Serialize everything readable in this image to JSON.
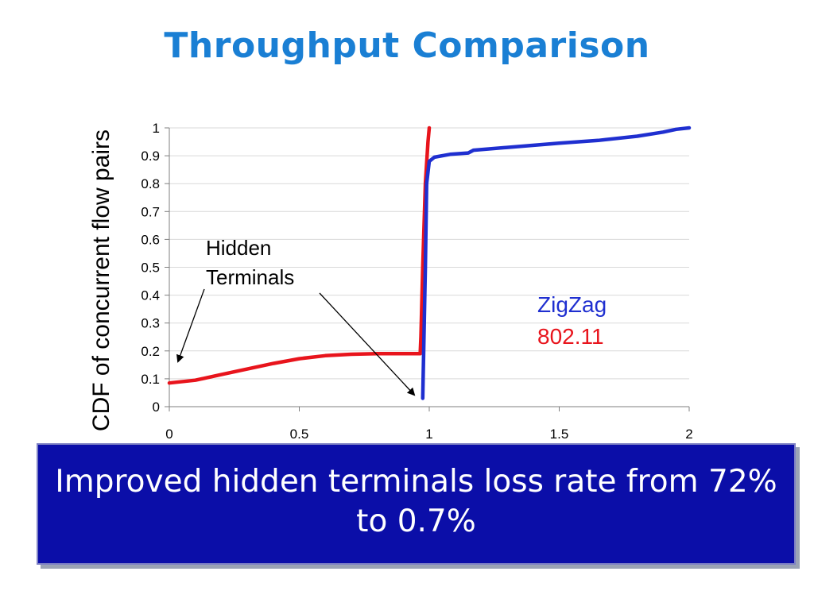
{
  "slide": {
    "title": "Throughput Comparison",
    "banner_text": "Improved hidden terminals loss rate from 72% to 0.7%",
    "annotation": {
      "line1": "Hidden",
      "line2": "Terminals"
    }
  },
  "colors": {
    "title": "#1a7fd4",
    "zigzag": "#1f2fd0",
    "ieee80211": "#e8141c",
    "banner": "#0b0ea8"
  },
  "chart_data": {
    "type": "line",
    "title": "",
    "xlabel": "",
    "ylabel": "CDF of concurrent flow pairs",
    "xlim": [
      0,
      2
    ],
    "ylim": [
      0,
      1
    ],
    "x_ticks": [
      "0",
      "0.5",
      "1",
      "1.5",
      "2"
    ],
    "y_ticks": [
      "0",
      "0.1",
      "0.2",
      "0.3",
      "0.4",
      "0.5",
      "0.6",
      "0.7",
      "0.8",
      "0.9",
      "1"
    ],
    "grid": "horizontal",
    "legend": "inside-right",
    "series": [
      {
        "name": "ZigZag",
        "color": "#1f2fd0",
        "points": [
          [
            0.975,
            0.03
          ],
          [
            0.985,
            0.5
          ],
          [
            0.99,
            0.8
          ],
          [
            1.0,
            0.88
          ],
          [
            1.02,
            0.895
          ],
          [
            1.08,
            0.905
          ],
          [
            1.15,
            0.91
          ],
          [
            1.17,
            0.92
          ],
          [
            1.3,
            0.93
          ],
          [
            1.5,
            0.945
          ],
          [
            1.65,
            0.955
          ],
          [
            1.8,
            0.97
          ],
          [
            1.9,
            0.985
          ],
          [
            1.95,
            0.995
          ],
          [
            2.0,
            1.0
          ]
        ]
      },
      {
        "name": "802.11",
        "color": "#e8141c",
        "points": [
          [
            0.0,
            0.085
          ],
          [
            0.1,
            0.095
          ],
          [
            0.2,
            0.115
          ],
          [
            0.3,
            0.135
          ],
          [
            0.4,
            0.155
          ],
          [
            0.5,
            0.172
          ],
          [
            0.6,
            0.183
          ],
          [
            0.7,
            0.188
          ],
          [
            0.8,
            0.19
          ],
          [
            0.965,
            0.19
          ],
          [
            0.968,
            0.25
          ],
          [
            0.975,
            0.5
          ],
          [
            0.985,
            0.8
          ],
          [
            0.995,
            0.95
          ],
          [
            1.0,
            1.0
          ]
        ]
      }
    ]
  }
}
